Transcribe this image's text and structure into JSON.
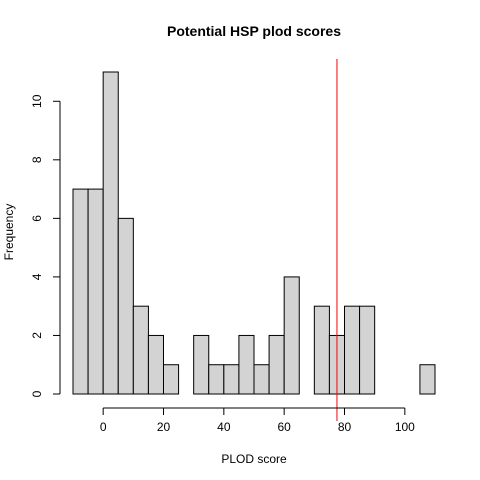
{
  "chart_data": {
    "type": "bar",
    "title": "Potential HSP plod scores",
    "xlabel": "PLOD score",
    "ylabel": "Frequency",
    "bin_width": 5,
    "bins": [
      {
        "start": -10,
        "end": -5,
        "count": 7
      },
      {
        "start": -5,
        "end": 0,
        "count": 7
      },
      {
        "start": 0,
        "end": 5,
        "count": 11
      },
      {
        "start": 5,
        "end": 10,
        "count": 6
      },
      {
        "start": 10,
        "end": 15,
        "count": 3
      },
      {
        "start": 15,
        "end": 20,
        "count": 2
      },
      {
        "start": 20,
        "end": 25,
        "count": 1
      },
      {
        "start": 25,
        "end": 30,
        "count": 0
      },
      {
        "start": 30,
        "end": 35,
        "count": 2
      },
      {
        "start": 35,
        "end": 40,
        "count": 1
      },
      {
        "start": 40,
        "end": 45,
        "count": 1
      },
      {
        "start": 45,
        "end": 50,
        "count": 2
      },
      {
        "start": 50,
        "end": 55,
        "count": 1
      },
      {
        "start": 55,
        "end": 60,
        "count": 2
      },
      {
        "start": 60,
        "end": 65,
        "count": 4
      },
      {
        "start": 65,
        "end": 70,
        "count": 0
      },
      {
        "start": 70,
        "end": 75,
        "count": 3
      },
      {
        "start": 75,
        "end": 80,
        "count": 2
      },
      {
        "start": 80,
        "end": 85,
        "count": 3
      },
      {
        "start": 85,
        "end": 90,
        "count": 3
      },
      {
        "start": 90,
        "end": 95,
        "count": 0
      },
      {
        "start": 95,
        "end": 100,
        "count": 0
      },
      {
        "start": 100,
        "end": 105,
        "count": 0
      },
      {
        "start": 105,
        "end": 110,
        "count": 1
      }
    ],
    "xlim": [
      -10,
      110
    ],
    "ylim": [
      0,
      11
    ],
    "x_ticks": [
      0,
      20,
      40,
      60,
      80,
      100
    ],
    "y_ticks": [
      0,
      2,
      4,
      6,
      8,
      10
    ],
    "reference_line": {
      "x": 77.5,
      "color": "#ff0000"
    },
    "bar_fill": "#d3d3d3",
    "bar_stroke": "#000000",
    "grid": false,
    "legend": "none"
  }
}
